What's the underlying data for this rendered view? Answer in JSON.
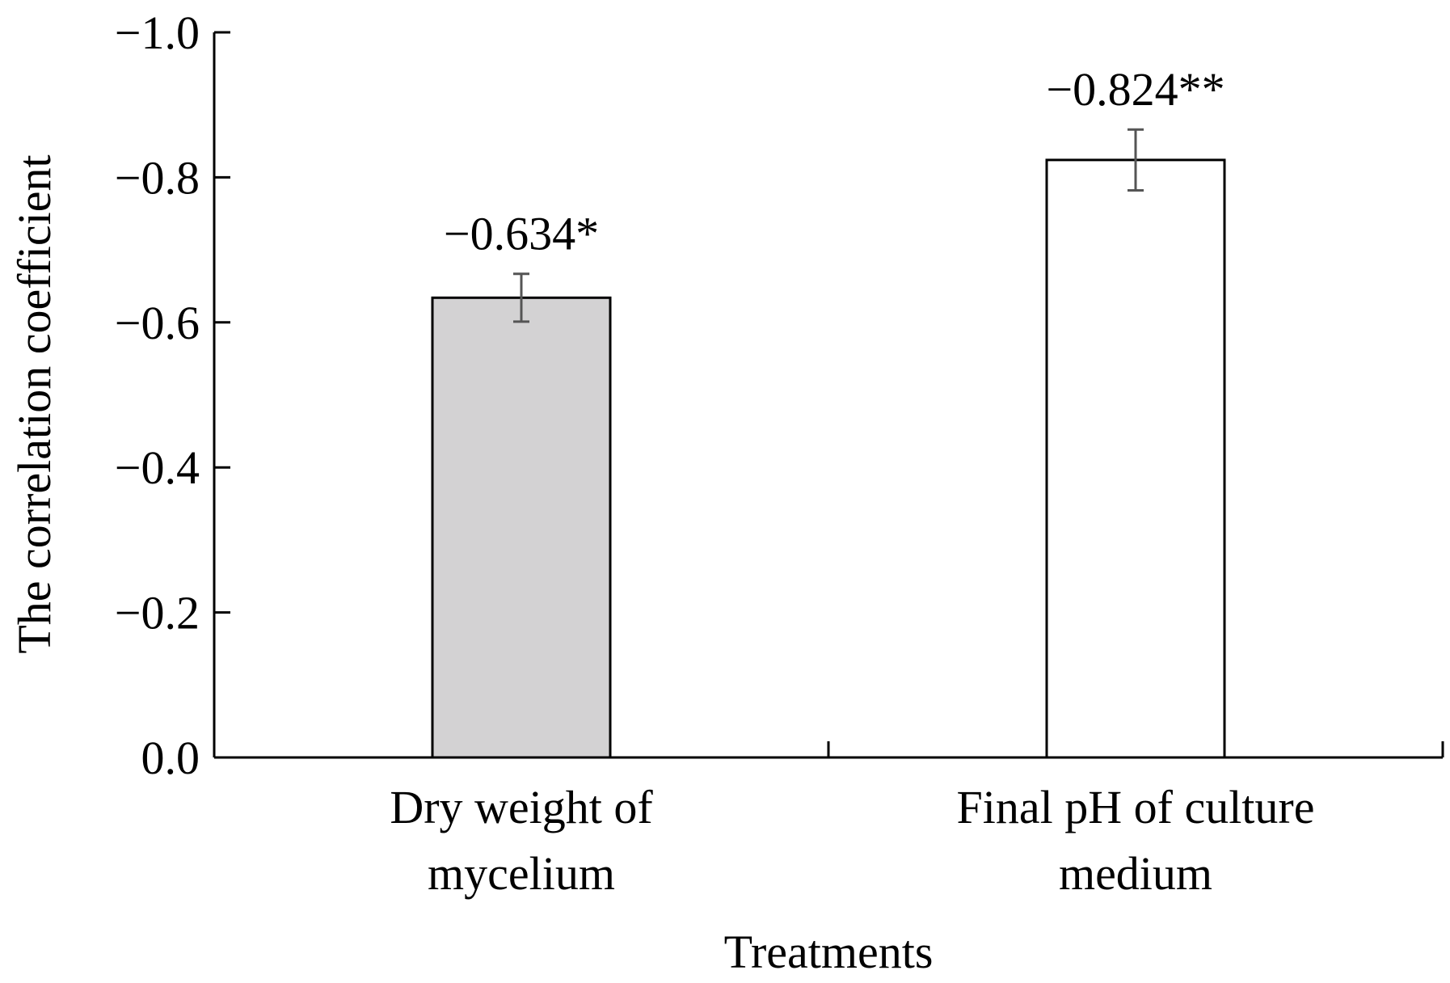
{
  "chart_data": {
    "type": "bar",
    "categories": [
      [
        "Dry weight of",
        "mycelium"
      ],
      [
        "Final pH of culture",
        "medium"
      ]
    ],
    "values": [
      -0.634,
      -0.824
    ],
    "error": [
      0.033,
      0.042
    ],
    "data_labels": [
      "−0.634*",
      "−0.824**"
    ],
    "bar_colors": [
      "#d3d2d3",
      "#ffffff"
    ],
    "xlabel": "Treatments",
    "ylabel": "The correlation coefficient",
    "ylim": [
      0,
      -1.0
    ],
    "y_ticks": [
      0.0,
      -0.2,
      -0.4,
      -0.6,
      -0.8,
      -1.0
    ],
    "y_tick_labels": [
      "0.0",
      "−0.2",
      "−0.4",
      "−0.6",
      "−0.8",
      "−1.0"
    ],
    "grid": false,
    "legend": "none",
    "colors": {
      "axis": "#000000",
      "bar_edge": "#000000",
      "error_bar": "#555555"
    }
  }
}
